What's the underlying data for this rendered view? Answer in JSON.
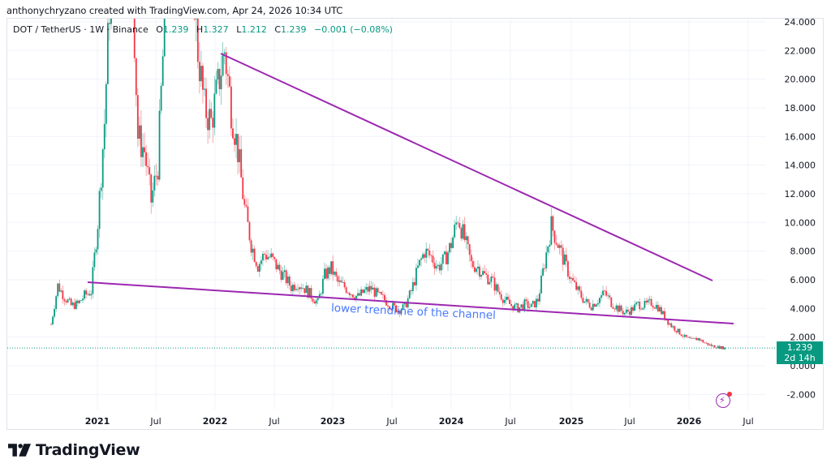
{
  "header": {
    "credit": "anthonychryzano created with TradingView.com, Apr 24, 2026 10:34 UTC"
  },
  "legend": {
    "symbol": "DOT / TetherUS · 1W · Binance",
    "open_label": "O",
    "open": "1.239",
    "high_label": "H",
    "high": "1.327",
    "low_label": "L",
    "low": "1.212",
    "close_label": "C",
    "close": "1.239",
    "change": "−0.001 (−0.08%)"
  },
  "price_tag": {
    "price": "1.239",
    "countdown": "2d 14h",
    "color": "#089981"
  },
  "annotation": {
    "text": "lower trendline of the channel",
    "color": "#2962ff"
  },
  "brand": {
    "name": "TradingView"
  },
  "colors": {
    "up": "#089981",
    "down": "#f23645",
    "trendline": "#9c27b0",
    "grid": "#f0f3fa"
  },
  "chart_data": {
    "type": "candlestick",
    "title": "DOT / TetherUS · 1W · Binance",
    "xlabel": "",
    "ylabel": "",
    "ylim": [
      -3.0,
      24.5
    ],
    "grid": true,
    "y_ticks": [
      "24.000",
      "22.000",
      "20.000",
      "18.000",
      "16.000",
      "14.000",
      "12.000",
      "10.000",
      "8.000",
      "6.000",
      "4.000",
      "2.000",
      "0.000",
      "-2.000"
    ],
    "x_ticks": [
      {
        "label": "2021",
        "year": true
      },
      {
        "label": "Jul",
        "year": false
      },
      {
        "label": "2022",
        "year": true
      },
      {
        "label": "Jul",
        "year": false
      },
      {
        "label": "2023",
        "year": true
      },
      {
        "label": "Jul",
        "year": false
      },
      {
        "label": "2024",
        "year": true
      },
      {
        "label": "Jul",
        "year": false
      },
      {
        "label": "2025",
        "year": true
      },
      {
        "label": "Jul",
        "year": false
      },
      {
        "label": "2026",
        "year": true
      },
      {
        "label": "Jul",
        "year": false
      }
    ],
    "last_price": 1.239,
    "trendlines": [
      {
        "name": "upper trendline",
        "from": {
          "date": "2022-01",
          "price": 21.8
        },
        "to": {
          "date": "2026-04",
          "price": 5.9
        }
      },
      {
        "name": "lower trendline of the channel",
        "from": {
          "date": "2020-12",
          "price": 5.9
        },
        "to": {
          "date": "2026-06",
          "price": 2.9
        }
      }
    ],
    "approx_weekly_closes": {
      "note": "Approximate path read from chart, one value per ~4 weeks",
      "start": "2020-08",
      "values": [
        2.9,
        5.6,
        4.8,
        4.2,
        4.3,
        4.9,
        5.2,
        10.0,
        17.0,
        28.0,
        35.0,
        40.0,
        30.0,
        16.0,
        15.0,
        11.5,
        14.0,
        24.0,
        32.0,
        38.0,
        42.0,
        30.0,
        22.0,
        18.0,
        17.0,
        19.5,
        22.0,
        18.0,
        15.0,
        11.0,
        8.5,
        7.0,
        7.8,
        7.5,
        6.8,
        6.2,
        5.5,
        5.8,
        5.4,
        4.9,
        4.4,
        6.3,
        6.8,
        5.8,
        5.5,
        5.1,
        4.8,
        5.2,
        5.4,
        4.9,
        4.6,
        4.2,
        3.9,
        4.1,
        5.2,
        6.8,
        8.0,
        7.6,
        6.9,
        7.4,
        8.5,
        10.4,
        8.8,
        7.1,
        6.9,
        6.3,
        6.0,
        5.2,
        4.6,
        4.2,
        4.0,
        4.3,
        4.1,
        4.6,
        7.2,
        9.8,
        8.5,
        7.2,
        6.0,
        5.2,
        4.5,
        4.2,
        4.6,
        5.1,
        4.4,
        4.0,
        3.7,
        3.9,
        4.3,
        4.2,
        4.4,
        4.1,
        3.4,
        2.8,
        2.4,
        2.0,
        1.8,
        1.9,
        1.6,
        1.4,
        1.3,
        1.239
      ]
    }
  }
}
